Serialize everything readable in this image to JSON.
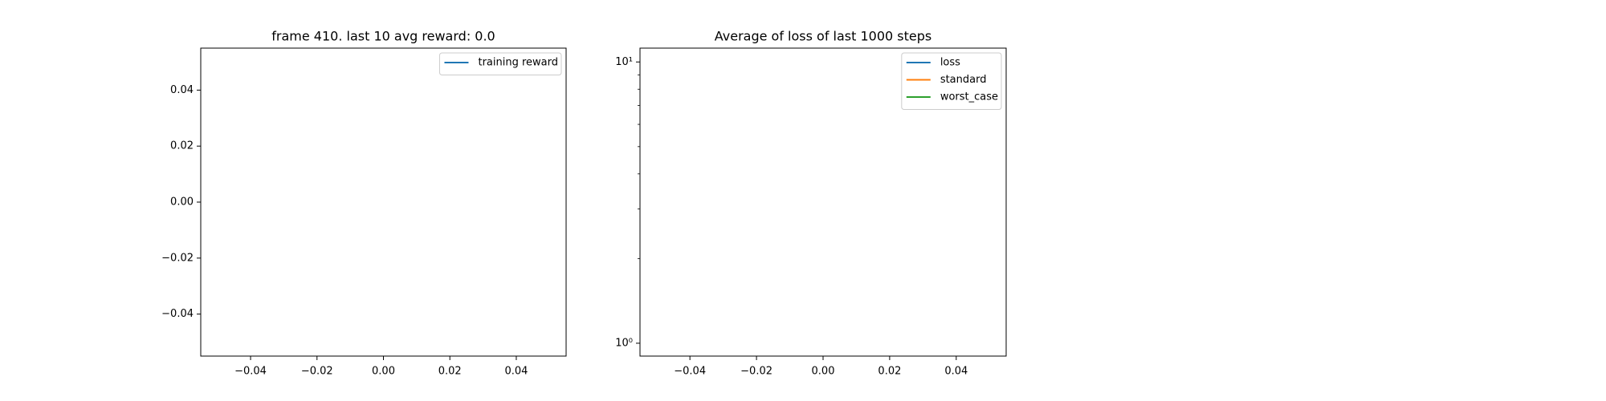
{
  "chart_data": [
    {
      "type": "line",
      "title": "frame 410. last 10 avg reward: 0.0",
      "x": [],
      "series": [
        {
          "name": "training reward",
          "color": "#1f77b4",
          "values": []
        }
      ],
      "xlim": [
        -0.055,
        0.055
      ],
      "xticks": [
        {
          "value": -0.04,
          "label": "−0.04"
        },
        {
          "value": -0.02,
          "label": "−0.02"
        },
        {
          "value": 0,
          "label": "0.00"
        },
        {
          "value": 0.02,
          "label": "0.02"
        },
        {
          "value": 0.04,
          "label": "0.04"
        }
      ],
      "ylim": [
        -0.055,
        0.055
      ],
      "yticks": [
        {
          "value": -0.04,
          "label": "−0.04"
        },
        {
          "value": -0.02,
          "label": "−0.02"
        },
        {
          "value": 0,
          "label": "0.00"
        },
        {
          "value": 0.02,
          "label": "0.02"
        },
        {
          "value": 0.04,
          "label": "0.04"
        }
      ],
      "legend": "upper right"
    },
    {
      "type": "line",
      "title": "Average of loss of last 1000 steps",
      "x": [],
      "series": [
        {
          "name": "loss",
          "color": "#1f77b4",
          "values": []
        },
        {
          "name": "standard",
          "color": "#ff7f0e",
          "values": []
        },
        {
          "name": "worst_case",
          "color": "#2ca02c",
          "values": []
        }
      ],
      "xlim": [
        -0.055,
        0.055
      ],
      "xticks": [
        {
          "value": -0.04,
          "label": "−0.04"
        },
        {
          "value": -0.02,
          "label": "−0.02"
        },
        {
          "value": 0,
          "label": "0.00"
        },
        {
          "value": 0.02,
          "label": "0.02"
        },
        {
          "value": 0.04,
          "label": "0.04"
        }
      ],
      "ylim": [
        0.9,
        11.2
      ],
      "yscale": "log",
      "yticks": [
        {
          "value": 1,
          "label": "10⁰"
        },
        {
          "value": 10,
          "label": "10¹"
        }
      ],
      "minor_yticks": [
        2,
        3,
        4,
        5,
        6,
        7,
        8,
        9
      ],
      "legend": "upper right"
    }
  ]
}
